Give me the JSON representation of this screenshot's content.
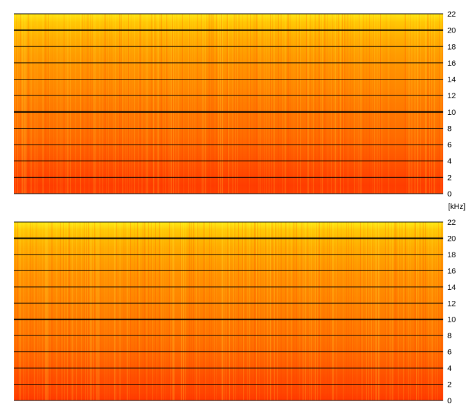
{
  "chart_data": [
    {
      "type": "heatmap",
      "channel": "top",
      "y_unit": "kHz",
      "ylim": [
        0,
        22
      ],
      "y_ticks": [
        0,
        2,
        4,
        6,
        8,
        10,
        12,
        14,
        16,
        18,
        20,
        22
      ],
      "y_tick_labels": [
        "0",
        "2",
        "4",
        "6",
        "8",
        "10",
        "12",
        "14",
        "16",
        "18",
        "20",
        "22"
      ],
      "major_gridlines_khz": [
        10,
        20
      ],
      "grid": true,
      "colormap": [
        "#ff2a00",
        "#ff5a00",
        "#ff8c00",
        "#ffbf00",
        "#ffff20"
      ],
      "intensity_profile": [
        {
          "khz": 0,
          "level": 0.12
        },
        {
          "khz": 1,
          "level": 0.1
        },
        {
          "khz": 3,
          "level": 0.18
        },
        {
          "khz": 5,
          "level": 0.26
        },
        {
          "khz": 7,
          "level": 0.34
        },
        {
          "khz": 9,
          "level": 0.38
        },
        {
          "khz": 11,
          "level": 0.42
        },
        {
          "khz": 13,
          "level": 0.48
        },
        {
          "khz": 15,
          "level": 0.52
        },
        {
          "khz": 17,
          "level": 0.58
        },
        {
          "khz": 19,
          "level": 0.66
        },
        {
          "khz": 21,
          "level": 0.78
        },
        {
          "khz": 22,
          "level": 0.9
        }
      ]
    },
    {
      "type": "heatmap",
      "channel": "bottom",
      "y_unit": "kHz",
      "ylim": [
        0,
        22
      ],
      "y_ticks": [
        0,
        2,
        4,
        6,
        8,
        10,
        12,
        14,
        16,
        18,
        20,
        22
      ],
      "y_tick_labels": [
        "0",
        "2",
        "4",
        "6",
        "8",
        "10",
        "12",
        "14",
        "16",
        "18",
        "20",
        "22"
      ],
      "major_gridlines_khz": [
        10,
        20
      ],
      "grid": true,
      "colormap": [
        "#ff2a00",
        "#ff5a00",
        "#ff8c00",
        "#ffbf00",
        "#ffff20"
      ],
      "intensity_profile": [
        {
          "khz": 0,
          "level": 0.08
        },
        {
          "khz": 1,
          "level": 0.14
        },
        {
          "khz": 3,
          "level": 0.2
        },
        {
          "khz": 5,
          "level": 0.3
        },
        {
          "khz": 7,
          "level": 0.36
        },
        {
          "khz": 9,
          "level": 0.4
        },
        {
          "khz": 11,
          "level": 0.44
        },
        {
          "khz": 13,
          "level": 0.48
        },
        {
          "khz": 15,
          "level": 0.52
        },
        {
          "khz": 17,
          "level": 0.58
        },
        {
          "khz": 19,
          "level": 0.66
        },
        {
          "khz": 21,
          "level": 0.78
        },
        {
          "khz": 22,
          "level": 0.92
        }
      ]
    }
  ],
  "unit_label": "[kHz]"
}
